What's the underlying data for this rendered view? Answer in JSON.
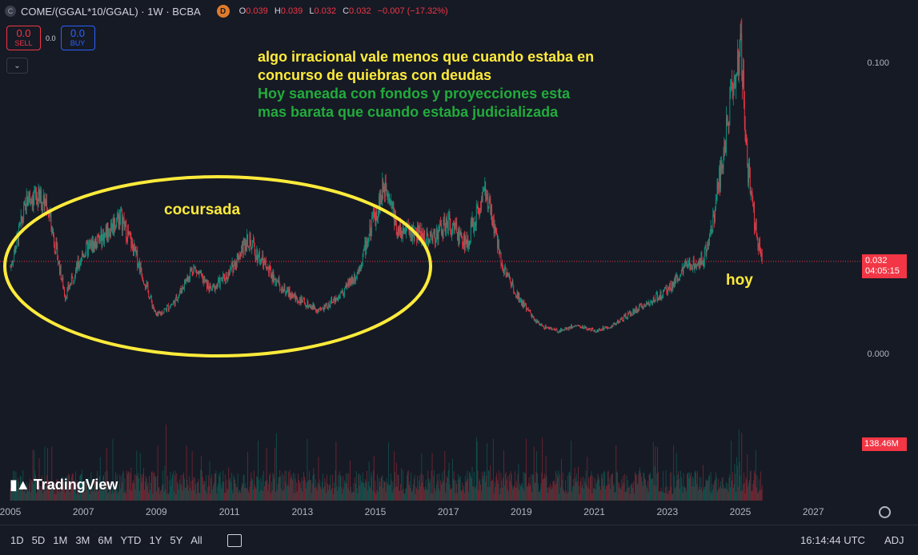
{
  "legend": {
    "symbol": "COME/(GGAL*10/GGAL) · 1W · BCBA",
    "symbol_icon": "C",
    "data_icon": "D",
    "o_label": "O",
    "o_val": "0.039",
    "h_label": "H",
    "h_val": "0.039",
    "l_label": "L",
    "l_val": "0.032",
    "c_label": "C",
    "c_val": "0.032",
    "change": "−0.007 (−17.32%)"
  },
  "trade": {
    "sell_price": "0.0",
    "sell_label": "SELL",
    "spread": "0.0",
    "buy_price": "0.0",
    "buy_label": "BUY"
  },
  "annotations": {
    "line1": "algo irracional vale menos que cuando estaba en",
    "line2": "concurso de quiebras con deudas",
    "line3": "Hoy saneada con fondos y proyecciones esta",
    "line4": "mas barata que cuando estaba judicializada",
    "cocursada": "cocursada",
    "hoy": "hoy"
  },
  "price_axis": {
    "tick_top": "0.100",
    "tick_bottom": "0.000",
    "last_price": "0.032",
    "countdown": "04:05:15",
    "volume_badge": "138.46M"
  },
  "time_axis": [
    "2005",
    "2007",
    "2009",
    "2011",
    "2013",
    "2015",
    "2017",
    "2019",
    "2021",
    "2023",
    "2025",
    "2027"
  ],
  "branding": {
    "logo_text": "TradingView"
  },
  "bottom": {
    "ranges": [
      "1D",
      "5D",
      "1M",
      "3M",
      "6M",
      "YTD",
      "1Y",
      "5Y",
      "All"
    ],
    "clock": "16:14:44 UTC",
    "adj": "ADJ"
  },
  "colors": {
    "up": "#089981",
    "down": "#f23645",
    "highlight": "#ffeb3b",
    "green_text": "#22ab3c",
    "background": "#161a25"
  },
  "chart_data": {
    "type": "line",
    "x": [
      2005.0,
      2005.5,
      2006.0,
      2006.5,
      2007.0,
      2007.5,
      2008.0,
      2008.5,
      2009.0,
      2009.5,
      2010.0,
      2010.5,
      2011.0,
      2011.5,
      2012.0,
      2012.5,
      2013.0,
      2013.5,
      2014.0,
      2014.5,
      2015.0,
      2015.3,
      2015.6,
      2016.0,
      2016.5,
      2017.0,
      2017.5,
      2018.0,
      2018.5,
      2019.0,
      2019.5,
      2020.0,
      2020.5,
      2021.0,
      2021.5,
      2022.0,
      2022.5,
      2023.0,
      2023.5,
      2024.0,
      2024.3,
      2024.6,
      2024.8,
      2025.0,
      2025.2,
      2025.4,
      2025.6
    ],
    "series": [
      {
        "values": [
          0.03,
          0.055,
          0.052,
          0.02,
          0.035,
          0.04,
          0.048,
          0.032,
          0.013,
          0.018,
          0.03,
          0.022,
          0.028,
          0.04,
          0.03,
          0.022,
          0.018,
          0.015,
          0.02,
          0.028,
          0.048,
          0.06,
          0.043,
          0.042,
          0.04,
          0.045,
          0.038,
          0.057,
          0.03,
          0.018,
          0.01,
          0.008,
          0.01,
          0.008,
          0.01,
          0.014,
          0.018,
          0.022,
          0.03,
          0.033,
          0.05,
          0.075,
          0.095,
          0.108,
          0.065,
          0.045,
          0.032
        ]
      }
    ],
    "volume_last": "138.46M",
    "y_ticks": [
      "0.100",
      "0.000"
    ],
    "x_ticks": [
      "2005",
      "2007",
      "2009",
      "2011",
      "2013",
      "2015",
      "2017",
      "2019",
      "2021",
      "2023",
      "2025",
      "2027"
    ]
  }
}
